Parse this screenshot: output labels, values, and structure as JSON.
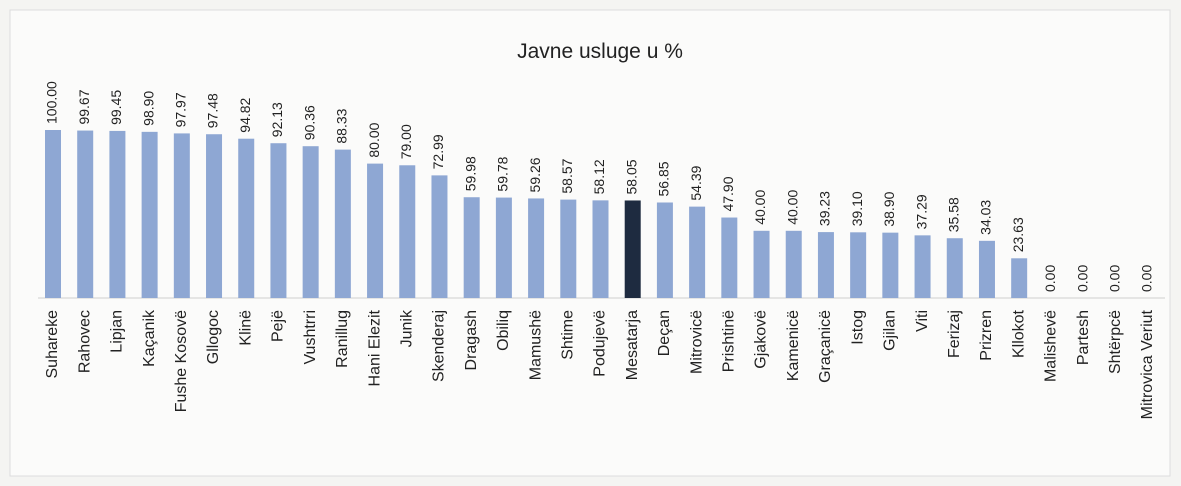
{
  "chart_data": {
    "type": "bar",
    "title": "Javne usluge u %",
    "categories": [
      "Suhareke",
      "Rahovec",
      "Lipjan",
      "Kaçanik",
      "Fushe Kosovë",
      "Gllogoc",
      "Klinë",
      "Pejë",
      "Vushtrri",
      "Ranillug",
      "Hani Elezit",
      "Junik",
      "Skenderaj",
      "Dragash",
      "Obiliq",
      "Mamushë",
      "Shtime",
      "Podujevë",
      "Mesatarja",
      "Deçan",
      "Mitrovicë",
      "Prishtinë",
      "Gjakovë",
      "Kamenicë",
      "Graçanicë",
      "Istog",
      "Gjilan",
      "Viti",
      "Ferizaj",
      "Prizren",
      "Kllokot",
      "Malishevë",
      "Partesh",
      "Shtërpcë",
      "Mitrovica Veriut"
    ],
    "values": [
      100,
      99.67,
      99.45,
      98.9,
      97.97,
      97.48,
      94.82,
      92.13,
      90.36,
      88.33,
      80,
      79,
      72.99,
      59.98,
      59.78,
      59.26,
      58.57,
      58.12,
      58.05,
      56.85,
      54.39,
      47.9,
      40,
      40,
      39.23,
      39.1,
      38.9,
      37.29,
      35.58,
      34.03,
      23.63,
      0,
      0,
      0,
      0
    ],
    "value_labels": [
      "100.00",
      "99.67",
      "99.45",
      "98.90",
      "97.97",
      "97.48",
      "94.82",
      "92.13",
      "90.36",
      "88.33",
      "80.00",
      "79.00",
      "72.99",
      "59.98",
      "59.78",
      "59.26",
      "58.57",
      "58.12",
      "58.05",
      "56.85",
      "54.39",
      "47.90",
      "40.00",
      "40.00",
      "39.23",
      "39.10",
      "38.90",
      "37.29",
      "35.58",
      "34.03",
      "23.63",
      "0.00",
      "0.00",
      "0.00",
      "0.00"
    ],
    "colors": [
      "#8ea7d3",
      "#8ea7d3",
      "#8ea7d3",
      "#8ea7d3",
      "#8ea7d3",
      "#8ea7d3",
      "#8ea7d3",
      "#8ea7d3",
      "#8ea7d3",
      "#8ea7d3",
      "#8ea7d3",
      "#8ea7d3",
      "#8ea7d3",
      "#8ea7d3",
      "#8ea7d3",
      "#8ea7d3",
      "#8ea7d3",
      "#8ea7d3",
      "#1e2b40",
      "#8ea7d3",
      "#8ea7d3",
      "#8ea7d3",
      "#8ea7d3",
      "#8ea7d3",
      "#8ea7d3",
      "#8ea7d3",
      "#8ea7d3",
      "#8ea7d3",
      "#8ea7d3",
      "#8ea7d3",
      "#8ea7d3",
      "#8ea7d3",
      "#8ea7d3",
      "#8ea7d3",
      "#8ea7d3"
    ]
  }
}
